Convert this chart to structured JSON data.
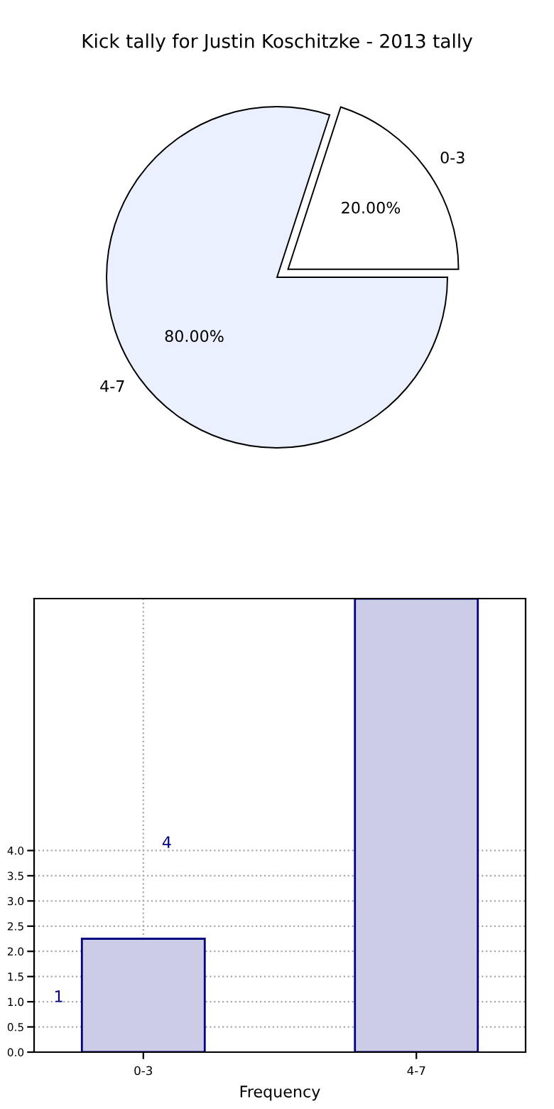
{
  "chart_data": [
    {
      "type": "pie",
      "title": "Kick tally for Justin Koschitzke - 2013 tally",
      "categories": [
        "0-3",
        "4-7"
      ],
      "values": [
        20,
        80
      ],
      "colors": [
        "#ffffff",
        "#eaf0fd"
      ],
      "value_labels": [
        "20.00%",
        "80.00%"
      ]
    },
    {
      "type": "bar",
      "categories": [
        "0-3",
        "4-7"
      ],
      "values": [
        2.25,
        9
      ],
      "color": "#cccce6",
      "xlabel": "Frequency",
      "ylim": [
        0,
        9
      ],
      "yticks": [
        {
          "value": 0,
          "label": "0.0"
        },
        0.5,
        {
          "value": 1,
          "label": "1.0"
        },
        1.5,
        {
          "value": 2,
          "label": "2.0"
        },
        2.5,
        {
          "value": 3,
          "label": "3.0"
        },
        3.5,
        {
          "value": 4,
          "label": "4.0"
        }
      ],
      "grid": true,
      "annotations": [
        "1",
        "4"
      ]
    }
  ]
}
